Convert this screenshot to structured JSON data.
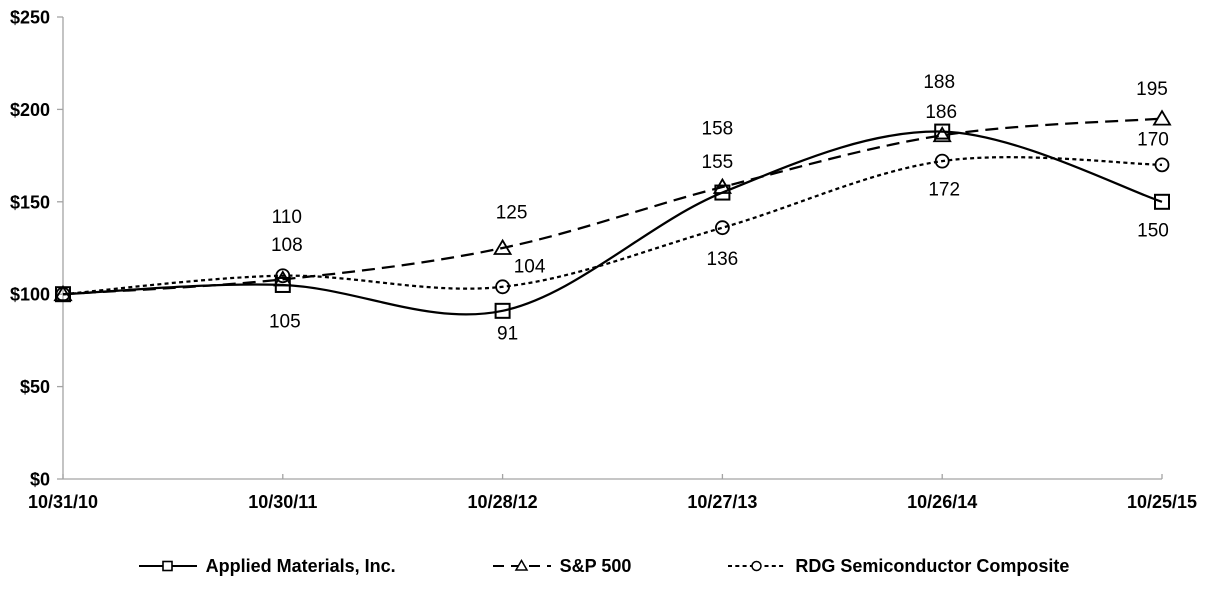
{
  "chart_data": {
    "type": "line",
    "title": "",
    "xlabel": "",
    "ylabel": "",
    "x_labels": [
      "10/31/10",
      "10/30/11",
      "10/28/12",
      "10/27/13",
      "10/26/14",
      "10/25/15"
    ],
    "y_ticks": [
      "$0",
      "$50",
      "$100",
      "$150",
      "$200",
      "$250"
    ],
    "ylim": [
      0,
      250
    ],
    "y_tick_step": 50,
    "grid": "off",
    "legend_position": "bottom",
    "data_labels_shown": true,
    "line_smoothing": "smoothed",
    "series": [
      {
        "name": "Applied Materials, Inc.",
        "marker": "square",
        "line_style": "solid",
        "values": [
          100,
          105,
          91,
          155,
          188,
          150
        ]
      },
      {
        "name": "S&P 500",
        "marker": "triangle",
        "line_style": "long-dash",
        "values": [
          100,
          108,
          125,
          158,
          186,
          195
        ]
      },
      {
        "name": "RDG Semiconductor Composite",
        "marker": "circle",
        "line_style": "dotted",
        "values": [
          100,
          110,
          104,
          136,
          172,
          170
        ]
      }
    ]
  },
  "colors": {
    "series_ink": "#000000",
    "axis": "#a3a3a3",
    "text": "#000000",
    "background": "#ffffff"
  }
}
